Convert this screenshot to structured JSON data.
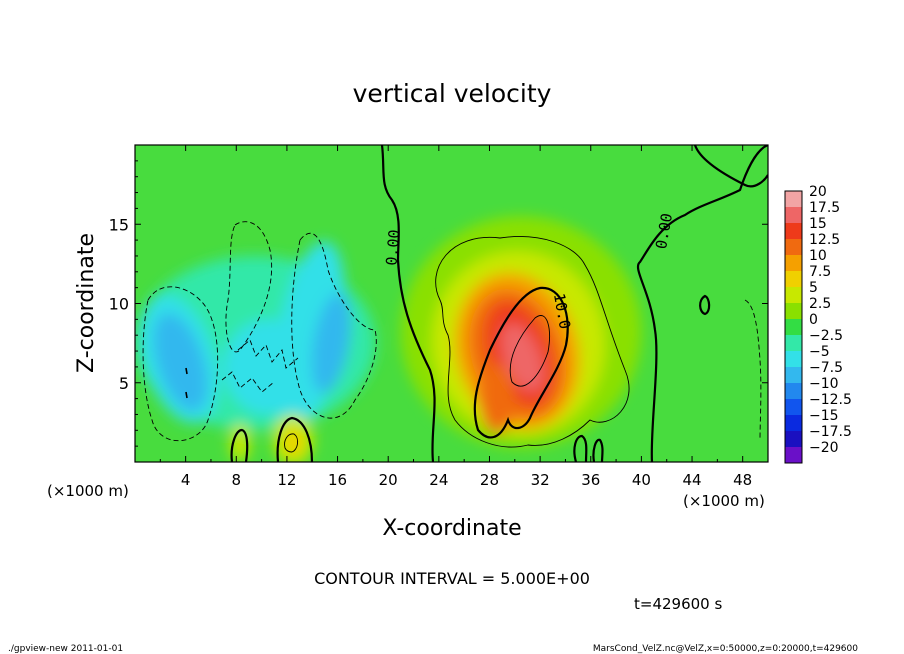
{
  "chart_data": {
    "type": "heatmap",
    "title": "vertical velocity",
    "xlabel": "X-coordinate",
    "ylabel": "Z-coordinate",
    "x_unit": "(×1000 m)",
    "y_unit": "(×1000 m)",
    "xlim": [
      0,
      50
    ],
    "ylim": [
      0,
      20
    ],
    "xticks": [
      4,
      8,
      12,
      16,
      20,
      24,
      28,
      32,
      36,
      40,
      44,
      48
    ],
    "yticks": [
      5,
      10,
      15
    ],
    "colorbar": {
      "levels": [
        20,
        17.5,
        15,
        12.5,
        10,
        7.5,
        5,
        2.5,
        0,
        -2.5,
        -5,
        -7.5,
        -10,
        -12.5,
        -15,
        -17.5,
        -20
      ],
      "labels": [
        "20",
        "17.5",
        "15",
        "12.5",
        "10",
        "7.5",
        "5",
        "2.5",
        "0",
        "−2.5",
        "−5",
        "−7.5",
        "−10",
        "−12.5",
        "−15",
        "−17.5",
        "−20"
      ],
      "colors": [
        "#f2a4a4",
        "#ee6666",
        "#ee3a1a",
        "#f06a10",
        "#f5a000",
        "#f0d000",
        "#c8e800",
        "#8ae000",
        "#33dd44",
        "#33e8a8",
        "#33e0e8",
        "#33b8ee",
        "#2288ee",
        "#1155ee",
        "#0a2ae0",
        "#1a10c0",
        "#6a10c8"
      ]
    },
    "contour_labels": [
      "0.00",
      "10.0",
      "0.00"
    ],
    "features": [
      {
        "kind": "updraft",
        "x": 30.5,
        "z": 6.5,
        "w_max": 17.5
      },
      {
        "kind": "downdraft",
        "x": 3.5,
        "z": 6.5,
        "w_min": -10
      },
      {
        "kind": "downdraft",
        "x": 13.5,
        "z": 7.5,
        "w_min": -7.5
      },
      {
        "kind": "downdraft",
        "x": 15.5,
        "z": 7.0,
        "w_min": -7.5
      },
      {
        "kind": "updraft",
        "x": 12.5,
        "z": 1.5,
        "w_max": 7.5
      }
    ],
    "contour_interval_text": "CONTOUR INTERVAL = 5.000E+00",
    "time_text": "t=429600 s"
  },
  "footer": {
    "left": "./gpview-new   2011-01-01",
    "right": "MarsCond_VelZ.nc@VelZ,x=0:50000,z=0:20000,t=429600"
  }
}
